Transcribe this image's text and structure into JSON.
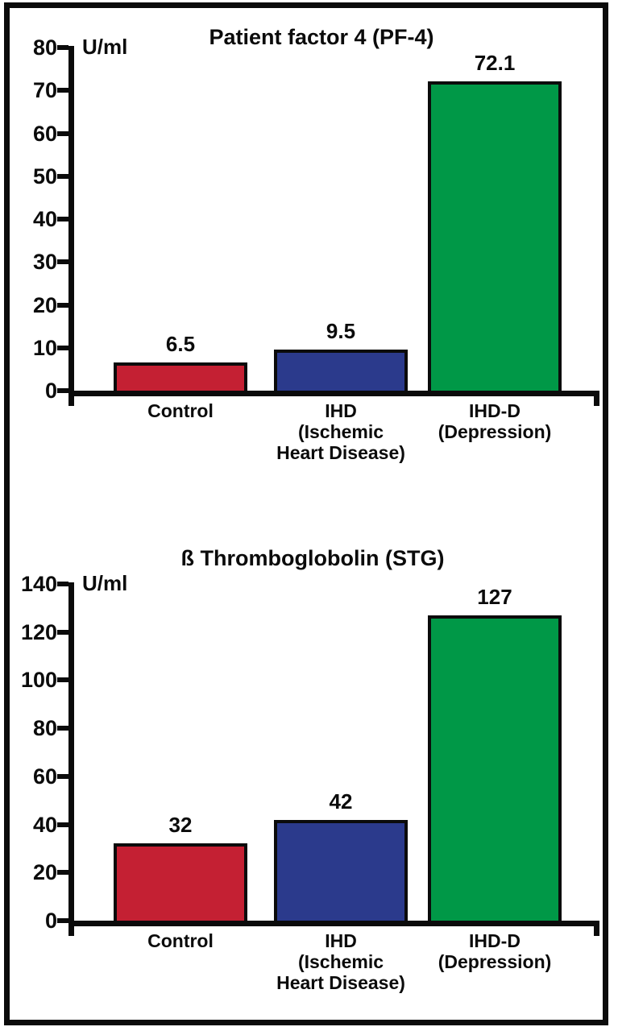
{
  "figure": {
    "background": "#ffffff",
    "border_color": "#0b0b0b"
  },
  "chart_data": [
    {
      "type": "bar",
      "title": "Patient factor 4 (PF-4)",
      "ylabel": "U/ml",
      "xlabel": "",
      "categories": [
        "Control",
        "IHD (Ischemic Heart Disease)",
        "IHD-D (Depression)"
      ],
      "category_labels": [
        "Control",
        "IHD\n(Ischemic\nHeart Disease)",
        "IHD-D\n(Depression)"
      ],
      "values": [
        6.5,
        9.5,
        72.1
      ],
      "value_labels": [
        "6.5",
        "9.5",
        "72.1"
      ],
      "bar_colors": [
        "#c42033",
        "#2b3a8c",
        "#009847"
      ],
      "ylim": [
        0,
        80
      ],
      "ytick_interval": 10,
      "ytick_labels": [
        "0",
        "10",
        "20",
        "30",
        "40",
        "50",
        "60",
        "70",
        "80"
      ],
      "grid": false,
      "legend": null
    },
    {
      "type": "bar",
      "title": "ß Thromboglobolin (STG)",
      "ylabel": "U/ml",
      "xlabel": "",
      "categories": [
        "Control",
        "IHD (Ischemic Heart Disease)",
        "IHD-D (Depression)"
      ],
      "category_labels": [
        "Control",
        "IHD\n(Ischemic\nHeart Disease)",
        "IHD-D\n(Depression)"
      ],
      "values": [
        32,
        42,
        127
      ],
      "value_labels": [
        "32",
        "42",
        "127"
      ],
      "bar_colors": [
        "#c42033",
        "#2b3a8c",
        "#009847"
      ],
      "ylim": [
        0,
        140
      ],
      "ytick_interval": 20,
      "ytick_labels": [
        "0",
        "20",
        "40",
        "60",
        "80",
        "100",
        "120",
        "140"
      ],
      "grid": false,
      "legend": null
    }
  ]
}
